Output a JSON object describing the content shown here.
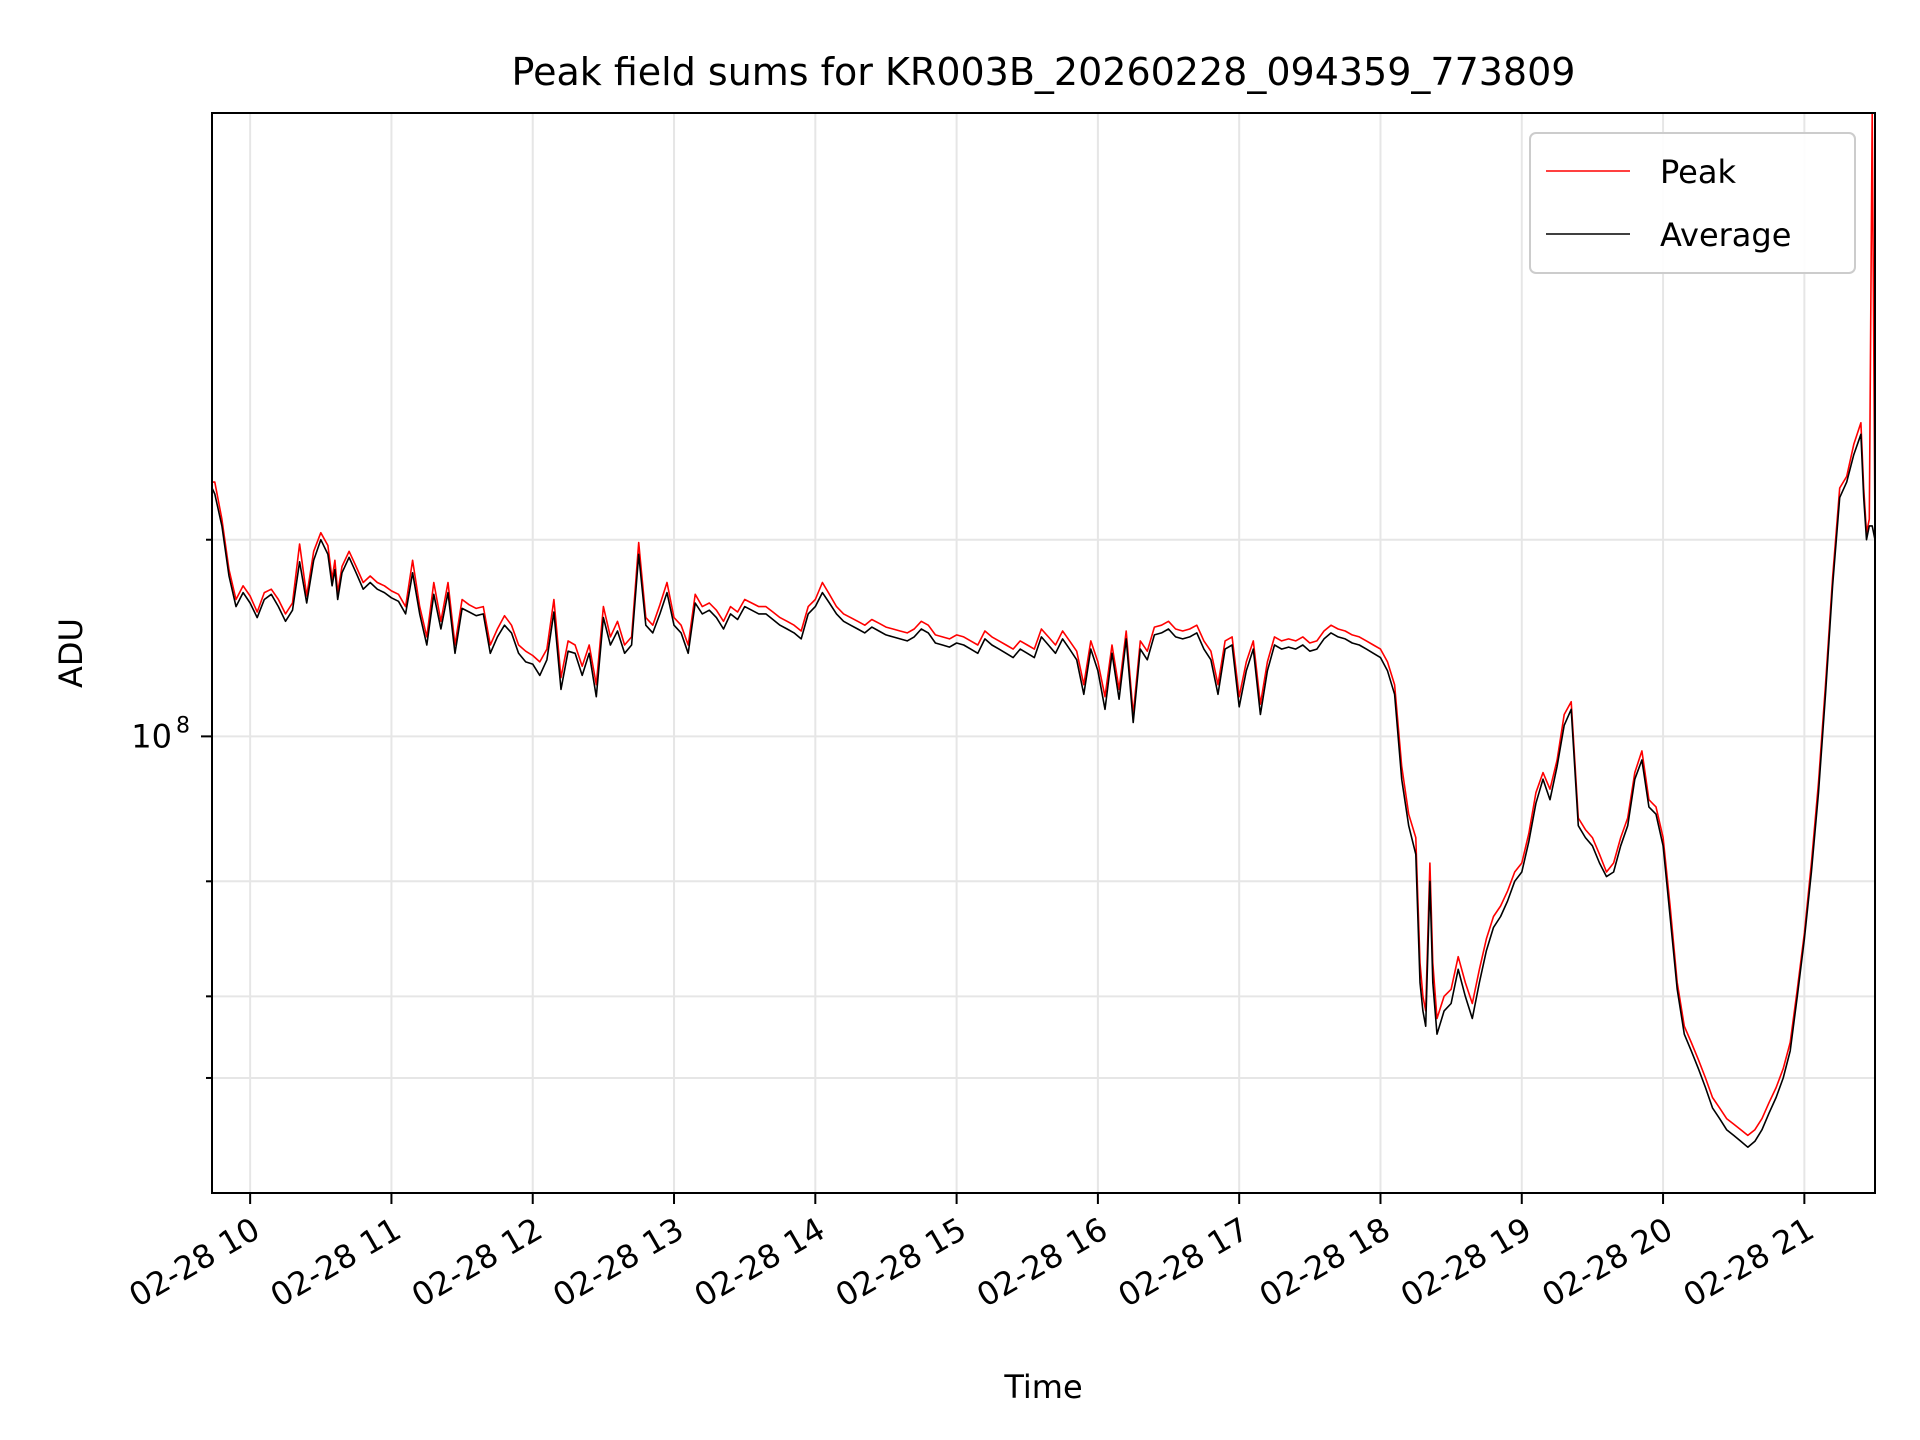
{
  "chart_data": {
    "type": "line",
    "title": "Peak field sums for KR003B_20260228_094359_773809",
    "xlabel": "Time",
    "ylabel": "ADU",
    "yscale": "log",
    "x_unit": "hours on 2026-02-28",
    "xlim": [
      9.73,
      21.5
    ],
    "ylim": [
      20000000,
      900000000
    ],
    "grid": true,
    "legend_position": "upper right",
    "x_ticks": [
      {
        "value": 10,
        "label": "02-28 10"
      },
      {
        "value": 11,
        "label": "02-28 11"
      },
      {
        "value": 12,
        "label": "02-28 12"
      },
      {
        "value": 13,
        "label": "02-28 13"
      },
      {
        "value": 14,
        "label": "02-28 14"
      },
      {
        "value": 15,
        "label": "02-28 15"
      },
      {
        "value": 16,
        "label": "02-28 16"
      },
      {
        "value": 17,
        "label": "02-28 17"
      },
      {
        "value": 18,
        "label": "02-28 18"
      },
      {
        "value": 19,
        "label": "02-28 19"
      },
      {
        "value": 20,
        "label": "02-28 20"
      },
      {
        "value": 21,
        "label": "02-28 21"
      }
    ],
    "y_major_tick": {
      "value": 100000000,
      "label_base": "10",
      "label_exp": "8"
    },
    "y_minor_ticks": [
      30000000,
      40000000,
      60000000,
      200000000
    ],
    "series": [
      {
        "name": "Peak",
        "color": "#ff0000",
        "x": [
          9.73,
          9.75,
          9.8,
          9.85,
          9.9,
          9.95,
          10.0,
          10.05,
          10.1,
          10.15,
          10.2,
          10.25,
          10.3,
          10.35,
          10.4,
          10.45,
          10.5,
          10.55,
          10.58,
          10.6,
          10.62,
          10.65,
          10.7,
          10.75,
          10.8,
          10.85,
          10.9,
          10.95,
          11.0,
          11.05,
          11.1,
          11.15,
          11.2,
          11.25,
          11.3,
          11.35,
          11.4,
          11.45,
          11.5,
          11.55,
          11.6,
          11.65,
          11.7,
          11.75,
          11.8,
          11.85,
          11.9,
          11.95,
          12.0,
          12.05,
          12.1,
          12.15,
          12.2,
          12.25,
          12.3,
          12.35,
          12.4,
          12.45,
          12.5,
          12.55,
          12.6,
          12.65,
          12.7,
          12.75,
          12.8,
          12.85,
          12.9,
          12.95,
          13.0,
          13.05,
          13.1,
          13.15,
          13.2,
          13.25,
          13.3,
          13.35,
          13.4,
          13.45,
          13.5,
          13.55,
          13.6,
          13.65,
          13.7,
          13.75,
          13.8,
          13.85,
          13.9,
          13.95,
          14.0,
          14.05,
          14.1,
          14.15,
          14.2,
          14.25,
          14.3,
          14.35,
          14.4,
          14.45,
          14.5,
          14.55,
          14.6,
          14.65,
          14.7,
          14.75,
          14.8,
          14.85,
          14.9,
          14.95,
          15.0,
          15.05,
          15.1,
          15.15,
          15.2,
          15.25,
          15.3,
          15.35,
          15.4,
          15.45,
          15.5,
          15.55,
          15.6,
          15.65,
          15.7,
          15.75,
          15.8,
          15.85,
          15.9,
          15.95,
          16.0,
          16.05,
          16.1,
          16.15,
          16.2,
          16.25,
          16.3,
          16.35,
          16.4,
          16.45,
          16.5,
          16.55,
          16.6,
          16.65,
          16.7,
          16.75,
          16.8,
          16.85,
          16.9,
          16.95,
          17.0,
          17.05,
          17.1,
          17.15,
          17.2,
          17.25,
          17.3,
          17.35,
          17.4,
          17.45,
          17.5,
          17.55,
          17.6,
          17.65,
          17.7,
          17.75,
          17.8,
          17.85,
          17.9,
          17.95,
          18.0,
          18.05,
          18.1,
          18.15,
          18.2,
          18.25,
          18.28,
          18.3,
          18.32,
          18.35,
          18.37,
          18.4,
          18.45,
          18.5,
          18.55,
          18.6,
          18.65,
          18.7,
          18.75,
          18.8,
          18.85,
          18.9,
          18.95,
          19.0,
          19.05,
          19.1,
          19.15,
          19.2,
          19.25,
          19.3,
          19.35,
          19.4,
          19.45,
          19.5,
          19.55,
          19.6,
          19.65,
          19.7,
          19.75,
          19.8,
          19.85,
          19.9,
          19.95,
          20.0,
          20.05,
          20.1,
          20.15,
          20.2,
          20.25,
          20.3,
          20.35,
          20.4,
          20.45,
          20.5,
          20.55,
          20.6,
          20.65,
          20.7,
          20.75,
          20.8,
          20.85,
          20.9,
          20.95,
          21.0,
          21.05,
          21.1,
          21.15,
          21.2,
          21.25,
          21.3,
          21.35,
          21.4,
          21.42,
          21.44,
          21.46,
          21.48,
          21.5
        ],
        "values": [
          245000000,
          245000000,
          215000000,
          180000000,
          162000000,
          170000000,
          164000000,
          155000000,
          166000000,
          168000000,
          162000000,
          154000000,
          160000000,
          197000000,
          164000000,
          192000000,
          205000000,
          196000000,
          174000000,
          186000000,
          166000000,
          182000000,
          192000000,
          182000000,
          172000000,
          176000000,
          172000000,
          170000000,
          167000000,
          165000000,
          158000000,
          186000000,
          158000000,
          142000000,
          172000000,
          150000000,
          172000000,
          138000000,
          162000000,
          159000000,
          157000000,
          158000000,
          138000000,
          146000000,
          153000000,
          148000000,
          138000000,
          135000000,
          133000000,
          130000000,
          136000000,
          162000000,
          123000000,
          140000000,
          138000000,
          128000000,
          138000000,
          120000000,
          158000000,
          142000000,
          150000000,
          138000000,
          142000000,
          198000000,
          152000000,
          148000000,
          159000000,
          172000000,
          152000000,
          148000000,
          138000000,
          165000000,
          158000000,
          160000000,
          156000000,
          150000000,
          158000000,
          155000000,
          162000000,
          160000000,
          158000000,
          158000000,
          155000000,
          152000000,
          150000000,
          148000000,
          145000000,
          158000000,
          162000000,
          172000000,
          165000000,
          158000000,
          154000000,
          152000000,
          150000000,
          148000000,
          151000000,
          149000000,
          147000000,
          146000000,
          145000000,
          144000000,
          146000000,
          150000000,
          148000000,
          143000000,
          142000000,
          141000000,
          143000000,
          142000000,
          140000000,
          138000000,
          145000000,
          142000000,
          140000000,
          138000000,
          136000000,
          140000000,
          138000000,
          136000000,
          146000000,
          142000000,
          138000000,
          145000000,
          140000000,
          135000000,
          120000000,
          140000000,
          130000000,
          115000000,
          138000000,
          118000000,
          145000000,
          108000000,
          140000000,
          135000000,
          147000000,
          148000000,
          150000000,
          146000000,
          145000000,
          146000000,
          148000000,
          140000000,
          135000000,
          120000000,
          140000000,
          142000000,
          115000000,
          130000000,
          140000000,
          112000000,
          130000000,
          142000000,
          140000000,
          141000000,
          140000000,
          142000000,
          139000000,
          140000000,
          145000000,
          148000000,
          146000000,
          145000000,
          143000000,
          142000000,
          140000000,
          138000000,
          136000000,
          130000000,
          120000000,
          90000000,
          76000000,
          70000000,
          45000000,
          40000000,
          38000000,
          64000000,
          45000000,
          37000000,
          40000000,
          41000000,
          46000000,
          42000000,
          39000000,
          44000000,
          49000000,
          53000000,
          55000000,
          58000000,
          62000000,
          64000000,
          71000000,
          82000000,
          88000000,
          83000000,
          92000000,
          108000000,
          113000000,
          75000000,
          72000000,
          70000000,
          66000000,
          62000000,
          64000000,
          70000000,
          75000000,
          88000000,
          95000000,
          80000000,
          78000000,
          70000000,
          55000000,
          42000000,
          36000000,
          34000000,
          32000000,
          30000000,
          28000000,
          27000000,
          26000000,
          25500000,
          25000000,
          24500000,
          25000000,
          26000000,
          27500000,
          29000000,
          31000000,
          34000000,
          41000000,
          50000000,
          64000000,
          85000000,
          120000000,
          175000000,
          240000000,
          250000000,
          280000000,
          302000000,
          240000000,
          205000000,
          215000000,
          900000000,
          205000000
        ]
      },
      {
        "name": "Average",
        "color": "#000000",
        "x": [
          9.73,
          9.75,
          9.8,
          9.85,
          9.9,
          9.95,
          10.0,
          10.05,
          10.1,
          10.15,
          10.2,
          10.25,
          10.3,
          10.35,
          10.4,
          10.45,
          10.5,
          10.55,
          10.58,
          10.6,
          10.62,
          10.65,
          10.7,
          10.75,
          10.8,
          10.85,
          10.9,
          10.95,
          11.0,
          11.05,
          11.1,
          11.15,
          11.2,
          11.25,
          11.3,
          11.35,
          11.4,
          11.45,
          11.5,
          11.55,
          11.6,
          11.65,
          11.7,
          11.75,
          11.8,
          11.85,
          11.9,
          11.95,
          12.0,
          12.05,
          12.1,
          12.15,
          12.2,
          12.25,
          12.3,
          12.35,
          12.4,
          12.45,
          12.5,
          12.55,
          12.6,
          12.65,
          12.7,
          12.75,
          12.8,
          12.85,
          12.9,
          12.95,
          13.0,
          13.05,
          13.1,
          13.15,
          13.2,
          13.25,
          13.3,
          13.35,
          13.4,
          13.45,
          13.5,
          13.55,
          13.6,
          13.65,
          13.7,
          13.75,
          13.8,
          13.85,
          13.9,
          13.95,
          14.0,
          14.05,
          14.1,
          14.15,
          14.2,
          14.25,
          14.3,
          14.35,
          14.4,
          14.45,
          14.5,
          14.55,
          14.6,
          14.65,
          14.7,
          14.75,
          14.8,
          14.85,
          14.9,
          14.95,
          15.0,
          15.05,
          15.1,
          15.15,
          15.2,
          15.25,
          15.3,
          15.35,
          15.4,
          15.45,
          15.5,
          15.55,
          15.6,
          15.65,
          15.7,
          15.75,
          15.8,
          15.85,
          15.9,
          15.95,
          16.0,
          16.05,
          16.1,
          16.15,
          16.2,
          16.25,
          16.3,
          16.35,
          16.4,
          16.45,
          16.5,
          16.55,
          16.6,
          16.65,
          16.7,
          16.75,
          16.8,
          16.85,
          16.9,
          16.95,
          17.0,
          17.05,
          17.1,
          17.15,
          17.2,
          17.25,
          17.3,
          17.35,
          17.4,
          17.45,
          17.5,
          17.55,
          17.6,
          17.65,
          17.7,
          17.75,
          17.8,
          17.85,
          17.9,
          17.95,
          18.0,
          18.05,
          18.1,
          18.15,
          18.2,
          18.25,
          18.28,
          18.3,
          18.32,
          18.35,
          18.37,
          18.4,
          18.45,
          18.5,
          18.55,
          18.6,
          18.65,
          18.7,
          18.75,
          18.8,
          18.85,
          18.9,
          18.95,
          19.0,
          19.05,
          19.1,
          19.15,
          19.2,
          19.25,
          19.3,
          19.35,
          19.4,
          19.45,
          19.5,
          19.55,
          19.6,
          19.65,
          19.7,
          19.75,
          19.8,
          19.85,
          19.9,
          19.95,
          20.0,
          20.05,
          20.1,
          20.15,
          20.2,
          20.25,
          20.3,
          20.35,
          20.4,
          20.45,
          20.5,
          20.55,
          20.6,
          20.65,
          20.7,
          20.75,
          20.8,
          20.85,
          20.9,
          20.95,
          21.0,
          21.05,
          21.1,
          21.15,
          21.2,
          21.25,
          21.3,
          21.35,
          21.4,
          21.42,
          21.44,
          21.46,
          21.48,
          21.5
        ],
        "values": [
          240000000,
          235000000,
          210000000,
          176000000,
          158000000,
          166000000,
          160000000,
          152000000,
          162000000,
          165000000,
          158000000,
          150000000,
          156000000,
          185000000,
          160000000,
          186000000,
          200000000,
          190000000,
          170000000,
          180000000,
          162000000,
          178000000,
          188000000,
          178000000,
          168000000,
          172000000,
          168000000,
          166000000,
          163000000,
          161000000,
          154000000,
          178000000,
          154000000,
          138000000,
          165000000,
          146000000,
          166000000,
          134000000,
          157000000,
          155000000,
          153000000,
          154000000,
          134000000,
          142000000,
          148000000,
          144000000,
          134000000,
          130000000,
          129000000,
          124000000,
          131000000,
          155000000,
          118000000,
          135000000,
          134000000,
          124000000,
          134000000,
          115000000,
          152000000,
          138000000,
          145000000,
          134000000,
          138000000,
          190000000,
          148000000,
          144000000,
          154000000,
          166000000,
          148000000,
          144000000,
          134000000,
          160000000,
          154000000,
          156000000,
          152000000,
          146000000,
          154000000,
          151000000,
          158000000,
          156000000,
          154000000,
          154000000,
          151000000,
          148000000,
          146000000,
          144000000,
          141000000,
          154000000,
          158000000,
          166000000,
          160000000,
          154000000,
          150000000,
          148000000,
          146000000,
          144000000,
          147000000,
          145000000,
          143000000,
          142000000,
          141000000,
          140000000,
          142000000,
          146000000,
          144000000,
          139000000,
          138000000,
          137000000,
          139000000,
          138000000,
          136000000,
          134000000,
          141000000,
          138000000,
          136000000,
          134000000,
          132000000,
          136000000,
          134000000,
          132000000,
          142000000,
          138000000,
          134000000,
          141000000,
          136000000,
          131000000,
          116000000,
          136000000,
          126000000,
          110000000,
          134000000,
          114000000,
          141000000,
          105000000,
          136000000,
          131000000,
          143000000,
          144000000,
          146000000,
          142000000,
          141000000,
          142000000,
          144000000,
          136000000,
          131000000,
          116000000,
          136000000,
          138000000,
          111000000,
          126000000,
          136000000,
          108000000,
          126000000,
          138000000,
          136000000,
          137000000,
          136000000,
          138000000,
          135000000,
          136000000,
          141000000,
          144000000,
          142000000,
          141000000,
          139000000,
          138000000,
          136000000,
          134000000,
          132000000,
          126000000,
          116000000,
          86000000,
          73000000,
          66000000,
          42000000,
          38000000,
          36000000,
          60000000,
          42000000,
          35000000,
          38000000,
          39000000,
          44000000,
          40000000,
          37000000,
          42000000,
          47000000,
          51000000,
          53000000,
          56000000,
          60000000,
          62000000,
          69000000,
          79000000,
          86000000,
          80000000,
          90000000,
          104000000,
          110000000,
          73000000,
          70000000,
          68000000,
          64000000,
          61000000,
          62000000,
          68000000,
          73000000,
          86000000,
          92000000,
          78000000,
          76000000,
          68000000,
          53000000,
          41000000,
          35000000,
          33000000,
          31000000,
          29000000,
          27000000,
          26000000,
          25000000,
          24500000,
          24000000,
          23500000,
          24000000,
          25000000,
          26500000,
          28000000,
          30000000,
          33000000,
          40000000,
          49000000,
          62000000,
          82000000,
          116000000,
          170000000,
          232000000,
          245000000,
          270000000,
          290000000,
          232000000,
          200000000,
          210000000,
          210000000,
          200000000
        ]
      }
    ]
  }
}
